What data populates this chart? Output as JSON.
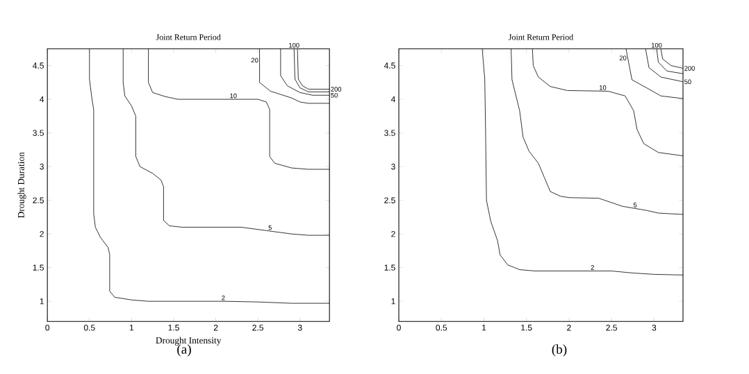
{
  "chart_data": [
    {
      "type": "line",
      "title": "Joint Return Period",
      "xlabel": "Drought Intensity",
      "ylabel": "Drought Duration",
      "annotations": [
        "(a)"
      ],
      "xlim": [
        0,
        3.35
      ],
      "ylim": [
        0.7,
        4.75
      ],
      "xticks": [
        0,
        0.5,
        1,
        1.5,
        2,
        2.5,
        3
      ],
      "yticks": [
        1,
        1.5,
        2,
        2.5,
        3,
        3.5,
        4,
        4.5
      ],
      "marker": "none",
      "line_style": "solid",
      "series": [
        {
          "name": "2",
          "color": "#000000",
          "x": [
            0.5,
            0.5,
            0.53,
            0.55,
            0.55,
            0.57,
            0.63,
            0.72,
            0.74,
            0.74,
            0.8,
            1.0,
            1.2,
            2.1,
            2.5,
            2.9,
            3.35
          ],
          "values": [
            4.75,
            4.3,
            4.0,
            3.85,
            2.3,
            2.1,
            1.95,
            1.8,
            1.7,
            1.15,
            1.06,
            1.02,
            1.0,
            1.0,
            0.99,
            0.97,
            0.97
          ]
        },
        {
          "name": "5",
          "color": "#000000",
          "x": [
            0.9,
            0.9,
            0.92,
            1.0,
            1.05,
            1.05,
            1.1,
            1.25,
            1.35,
            1.38,
            1.38,
            1.45,
            1.6,
            2.3,
            2.6,
            2.9,
            3.1,
            3.35
          ],
          "values": [
            4.75,
            4.25,
            4.05,
            3.9,
            3.75,
            3.15,
            3.0,
            2.9,
            2.8,
            2.7,
            2.2,
            2.12,
            2.1,
            2.1,
            2.05,
            2.0,
            1.98,
            1.98
          ]
        },
        {
          "name": "10",
          "color": "#000000",
          "x": [
            1.2,
            1.2,
            1.25,
            1.4,
            1.55,
            2.5,
            2.6,
            2.64,
            2.64,
            2.7,
            2.9,
            3.1,
            3.35
          ],
          "values": [
            4.75,
            4.25,
            4.1,
            4.04,
            4.0,
            4.0,
            3.96,
            3.85,
            3.15,
            3.05,
            2.98,
            2.96,
            2.96
          ]
        },
        {
          "name": "20",
          "color": "#000000",
          "x": [
            2.52,
            2.52,
            2.65,
            2.9,
            3.0,
            3.1,
            3.35
          ],
          "values": [
            4.75,
            4.25,
            4.12,
            4.02,
            3.96,
            3.94,
            3.94
          ]
        },
        {
          "name": "50",
          "color": "#000000",
          "x": [
            2.77,
            2.77,
            2.85,
            3.0,
            3.15,
            3.35
          ],
          "values": [
            4.75,
            4.35,
            4.2,
            4.1,
            4.06,
            4.06
          ]
        },
        {
          "name": "100",
          "color": "#000000",
          "x": [
            2.93,
            2.94,
            3.0,
            3.1,
            3.35
          ],
          "values": [
            4.75,
            4.3,
            4.17,
            4.11,
            4.11
          ]
        },
        {
          "name": "200",
          "color": "#000000",
          "x": [
            2.97,
            2.98,
            3.03,
            3.1,
            3.35
          ],
          "values": [
            4.75,
            4.3,
            4.2,
            4.15,
            4.15
          ]
        }
      ]
    },
    {
      "type": "line",
      "title": "Joint Return Period",
      "annotations": [
        "(b)"
      ],
      "xlim": [
        0,
        3.34
      ],
      "ylim": [
        0.7,
        4.75
      ],
      "xticks": [
        0,
        0.5,
        1,
        1.5,
        2,
        2.5,
        3
      ],
      "yticks": [
        1,
        1.5,
        2,
        2.5,
        3,
        3.5,
        4,
        4.5
      ],
      "marker": "none",
      "line_style": "solid",
      "series": [
        {
          "name": "2",
          "color": "#000000",
          "x": [
            0.98,
            1.01,
            1.02,
            1.03,
            1.08,
            1.16,
            1.19,
            1.28,
            1.42,
            1.6,
            2.5,
            2.75,
            3.0,
            3.34
          ],
          "values": [
            4.75,
            4.3,
            3.5,
            2.5,
            2.19,
            1.9,
            1.69,
            1.54,
            1.47,
            1.45,
            1.45,
            1.42,
            1.4,
            1.39
          ]
        },
        {
          "name": "5",
          "color": "#000000",
          "x": [
            1.32,
            1.33,
            1.42,
            1.46,
            1.53,
            1.64,
            1.71,
            1.78,
            1.9,
            2.0,
            2.35,
            2.63,
            2.91,
            3.05,
            3.34
          ],
          "values": [
            4.75,
            4.29,
            3.83,
            3.44,
            3.23,
            3.05,
            2.84,
            2.63,
            2.56,
            2.54,
            2.53,
            2.41,
            2.35,
            2.31,
            2.29
          ]
        },
        {
          "name": "10",
          "color": "#000000",
          "x": [
            1.57,
            1.58,
            1.64,
            1.78,
            1.98,
            2.46,
            2.66,
            2.76,
            2.8,
            2.88,
            3.05,
            3.34
          ],
          "values": [
            4.75,
            4.5,
            4.33,
            4.19,
            4.13,
            4.12,
            4.05,
            3.83,
            3.55,
            3.34,
            3.21,
            3.16
          ]
        },
        {
          "name": "20",
          "color": "#000000",
          "x": [
            2.67,
            2.74,
            2.94,
            3.08,
            3.34
          ],
          "values": [
            4.75,
            4.29,
            4.15,
            4.05,
            4.01
          ]
        },
        {
          "name": "50",
          "color": "#000000",
          "x": [
            2.9,
            2.94,
            3.08,
            3.34
          ],
          "values": [
            4.75,
            4.47,
            4.33,
            4.26
          ]
        },
        {
          "name": "100",
          "color": "#000000",
          "x": [
            3.03,
            3.05,
            3.15,
            3.34
          ],
          "values": [
            4.75,
            4.55,
            4.42,
            4.38
          ]
        },
        {
          "name": "200",
          "color": "#000000",
          "x": [
            3.08,
            3.1,
            3.2,
            3.34
          ],
          "values": [
            4.75,
            4.6,
            4.5,
            4.46
          ]
        }
      ]
    }
  ]
}
